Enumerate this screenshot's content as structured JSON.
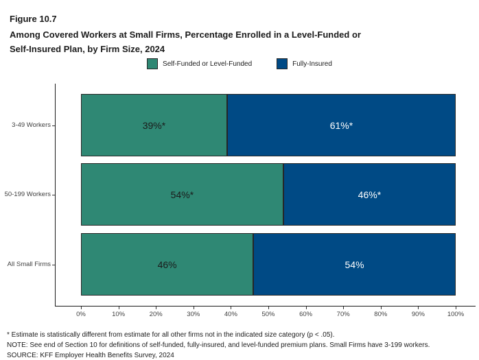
{
  "figure": {
    "label": "Figure 10.7",
    "title_line1": "Among Covered Workers at Small Firms, Percentage Enrolled in a Level-Funded or",
    "title_line2": "Self-Insured Plan, by Firm Size, 2024"
  },
  "legend": {
    "items": [
      {
        "label": "Self-Funded or Level-Funded",
        "color": "#2F8874"
      },
      {
        "label": "Fully-Insured",
        "color": "#004A85"
      }
    ]
  },
  "chart_data": {
    "type": "bar",
    "orientation": "horizontal",
    "stacked": true,
    "title": "Among Covered Workers at Small Firms, Percentage Enrolled in a Level-Funded or Self-Insured Plan, by Firm Size, 2024",
    "categories": [
      "3-49 Workers",
      "50-199 Workers",
      "All Small Firms"
    ],
    "series": [
      {
        "name": "Self-Funded or Level-Funded",
        "color": "#2F8874",
        "label_color": "#1a1a1a",
        "values": [
          39,
          54,
          46
        ],
        "labels": [
          "39%*",
          "54%*",
          "46%"
        ]
      },
      {
        "name": "Fully-Insured",
        "color": "#004A85",
        "label_color": "#ffffff",
        "values": [
          61,
          46,
          54
        ],
        "labels": [
          "61%*",
          "46%*",
          "54%"
        ]
      }
    ],
    "x_axis": {
      "range": [
        0,
        100
      ],
      "tick_labels": [
        "0%",
        "10%",
        "20%",
        "30%",
        "40%",
        "50%",
        "60%",
        "70%",
        "80%",
        "90%",
        "100%"
      ]
    },
    "xlabel": "",
    "ylabel": "",
    "grid": false,
    "legend_position": "top-center"
  },
  "footnotes": [
    "* Estimate is statistically different from estimate for all other firms not in the indicated size category (p < .05).",
    "NOTE: See end of Section 10 for definitions of self-funded, fully-insured, and level-funded premium plans. Small Firms have 3-199 workers.",
    "SOURCE: KFF Employer Health Benefits Survey, 2024"
  ]
}
